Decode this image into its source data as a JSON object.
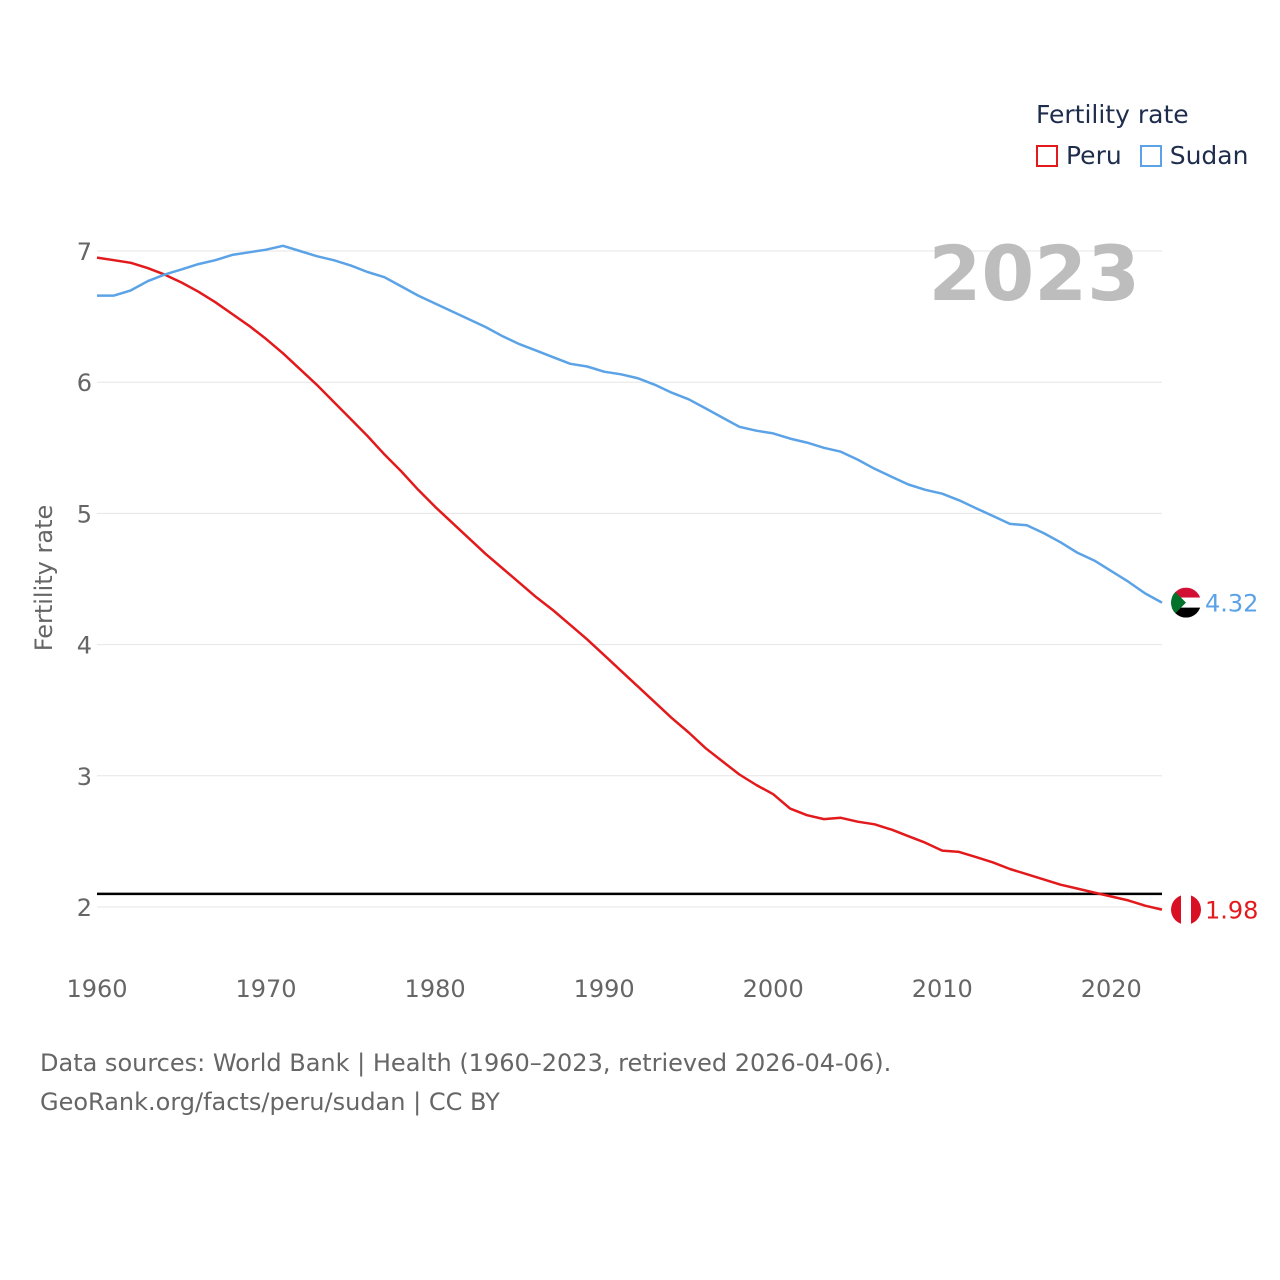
{
  "chart_data": {
    "type": "line",
    "title": "Fertility rate",
    "year_label": "2023",
    "xlabel": "",
    "ylabel": "Fertility rate",
    "xlim": [
      1960,
      2023
    ],
    "ylim": [
      1.5,
      7.2
    ],
    "x_ticks": [
      1960,
      1970,
      1980,
      1990,
      2000,
      2010,
      2020
    ],
    "y_ticks": [
      2,
      3,
      4,
      5,
      6,
      7
    ],
    "reference_line": 2.1,
    "x": [
      1960,
      1961,
      1962,
      1963,
      1964,
      1965,
      1966,
      1967,
      1968,
      1969,
      1970,
      1971,
      1972,
      1973,
      1974,
      1975,
      1976,
      1977,
      1978,
      1979,
      1980,
      1981,
      1982,
      1983,
      1984,
      1985,
      1986,
      1987,
      1988,
      1989,
      1990,
      1991,
      1992,
      1993,
      1994,
      1995,
      1996,
      1997,
      1998,
      1999,
      2000,
      2001,
      2002,
      2003,
      2004,
      2005,
      2006,
      2007,
      2008,
      2009,
      2010,
      2011,
      2012,
      2013,
      2014,
      2015,
      2016,
      2017,
      2018,
      2019,
      2020,
      2021,
      2022,
      2023
    ],
    "series": [
      {
        "name": "Peru",
        "color": "#e31a1c",
        "end_label": "1.98",
        "values": [
          6.95,
          6.93,
          6.91,
          6.87,
          6.82,
          6.76,
          6.69,
          6.61,
          6.52,
          6.43,
          6.33,
          6.22,
          6.1,
          5.98,
          5.85,
          5.72,
          5.59,
          5.45,
          5.32,
          5.18,
          5.05,
          4.93,
          4.81,
          4.69,
          4.58,
          4.47,
          4.36,
          4.26,
          4.15,
          4.04,
          3.92,
          3.8,
          3.68,
          3.56,
          3.44,
          3.33,
          3.21,
          3.11,
          3.01,
          2.93,
          2.86,
          2.75,
          2.7,
          2.67,
          2.68,
          2.65,
          2.63,
          2.59,
          2.54,
          2.49,
          2.43,
          2.42,
          2.38,
          2.34,
          2.29,
          2.25,
          2.21,
          2.17,
          2.14,
          2.11,
          2.08,
          2.05,
          2.01,
          1.98
        ]
      },
      {
        "name": "Sudan",
        "color": "#5ba3e6",
        "end_label": "4.32",
        "values": [
          6.66,
          6.66,
          6.7,
          6.77,
          6.82,
          6.86,
          6.9,
          6.93,
          6.97,
          6.99,
          7.01,
          7.04,
          7.0,
          6.96,
          6.93,
          6.89,
          6.84,
          6.8,
          6.73,
          6.66,
          6.6,
          6.54,
          6.48,
          6.42,
          6.35,
          6.29,
          6.24,
          6.19,
          6.14,
          6.12,
          6.08,
          6.06,
          6.03,
          5.98,
          5.92,
          5.87,
          5.8,
          5.73,
          5.66,
          5.63,
          5.61,
          5.57,
          5.54,
          5.5,
          5.47,
          5.41,
          5.34,
          5.28,
          5.22,
          5.18,
          5.15,
          5.1,
          5.04,
          4.98,
          4.92,
          4.91,
          4.85,
          4.78,
          4.7,
          4.64,
          4.56,
          4.48,
          4.39,
          4.32
        ]
      }
    ],
    "legend": {
      "title": "Fertility rate",
      "position": "top-right"
    }
  },
  "source": {
    "line1": "Data sources: World Bank | Health (1960–2023, retrieved 2026-04-06).",
    "line2": "GeoRank.org/facts/peru/sudan | CC BY"
  }
}
